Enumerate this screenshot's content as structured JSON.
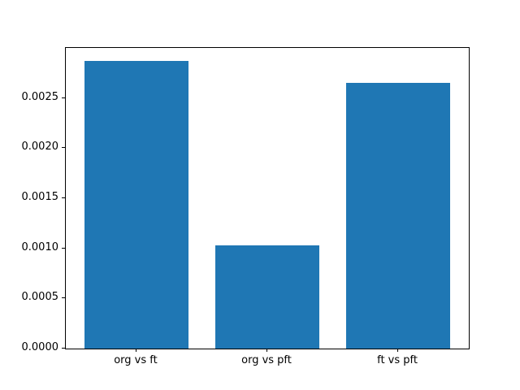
{
  "chart_data": {
    "type": "bar",
    "categories": [
      "org vs ft",
      "org vs pft",
      "ft vs pft"
    ],
    "values": [
      0.00287,
      0.00103,
      0.00265
    ],
    "title": "",
    "xlabel": "",
    "ylabel": "",
    "xlim": [
      -0.54,
      2.54
    ],
    "ylim": [
      0,
      0.003
    ],
    "yticks": [
      0.0,
      0.0005,
      0.001,
      0.0015,
      0.002,
      0.0025
    ],
    "ytick_labels": [
      "0.0000",
      "0.0005",
      "0.0010",
      "0.0015",
      "0.0020",
      "0.0025"
    ],
    "bar_width": 0.8,
    "bar_color": "#1f77b4",
    "grid": false,
    "legend": "none"
  },
  "figure": {
    "background_color": "#ffffff",
    "spine_color": "#000000",
    "tick_color": "#000000",
    "text_color": "#000000"
  }
}
